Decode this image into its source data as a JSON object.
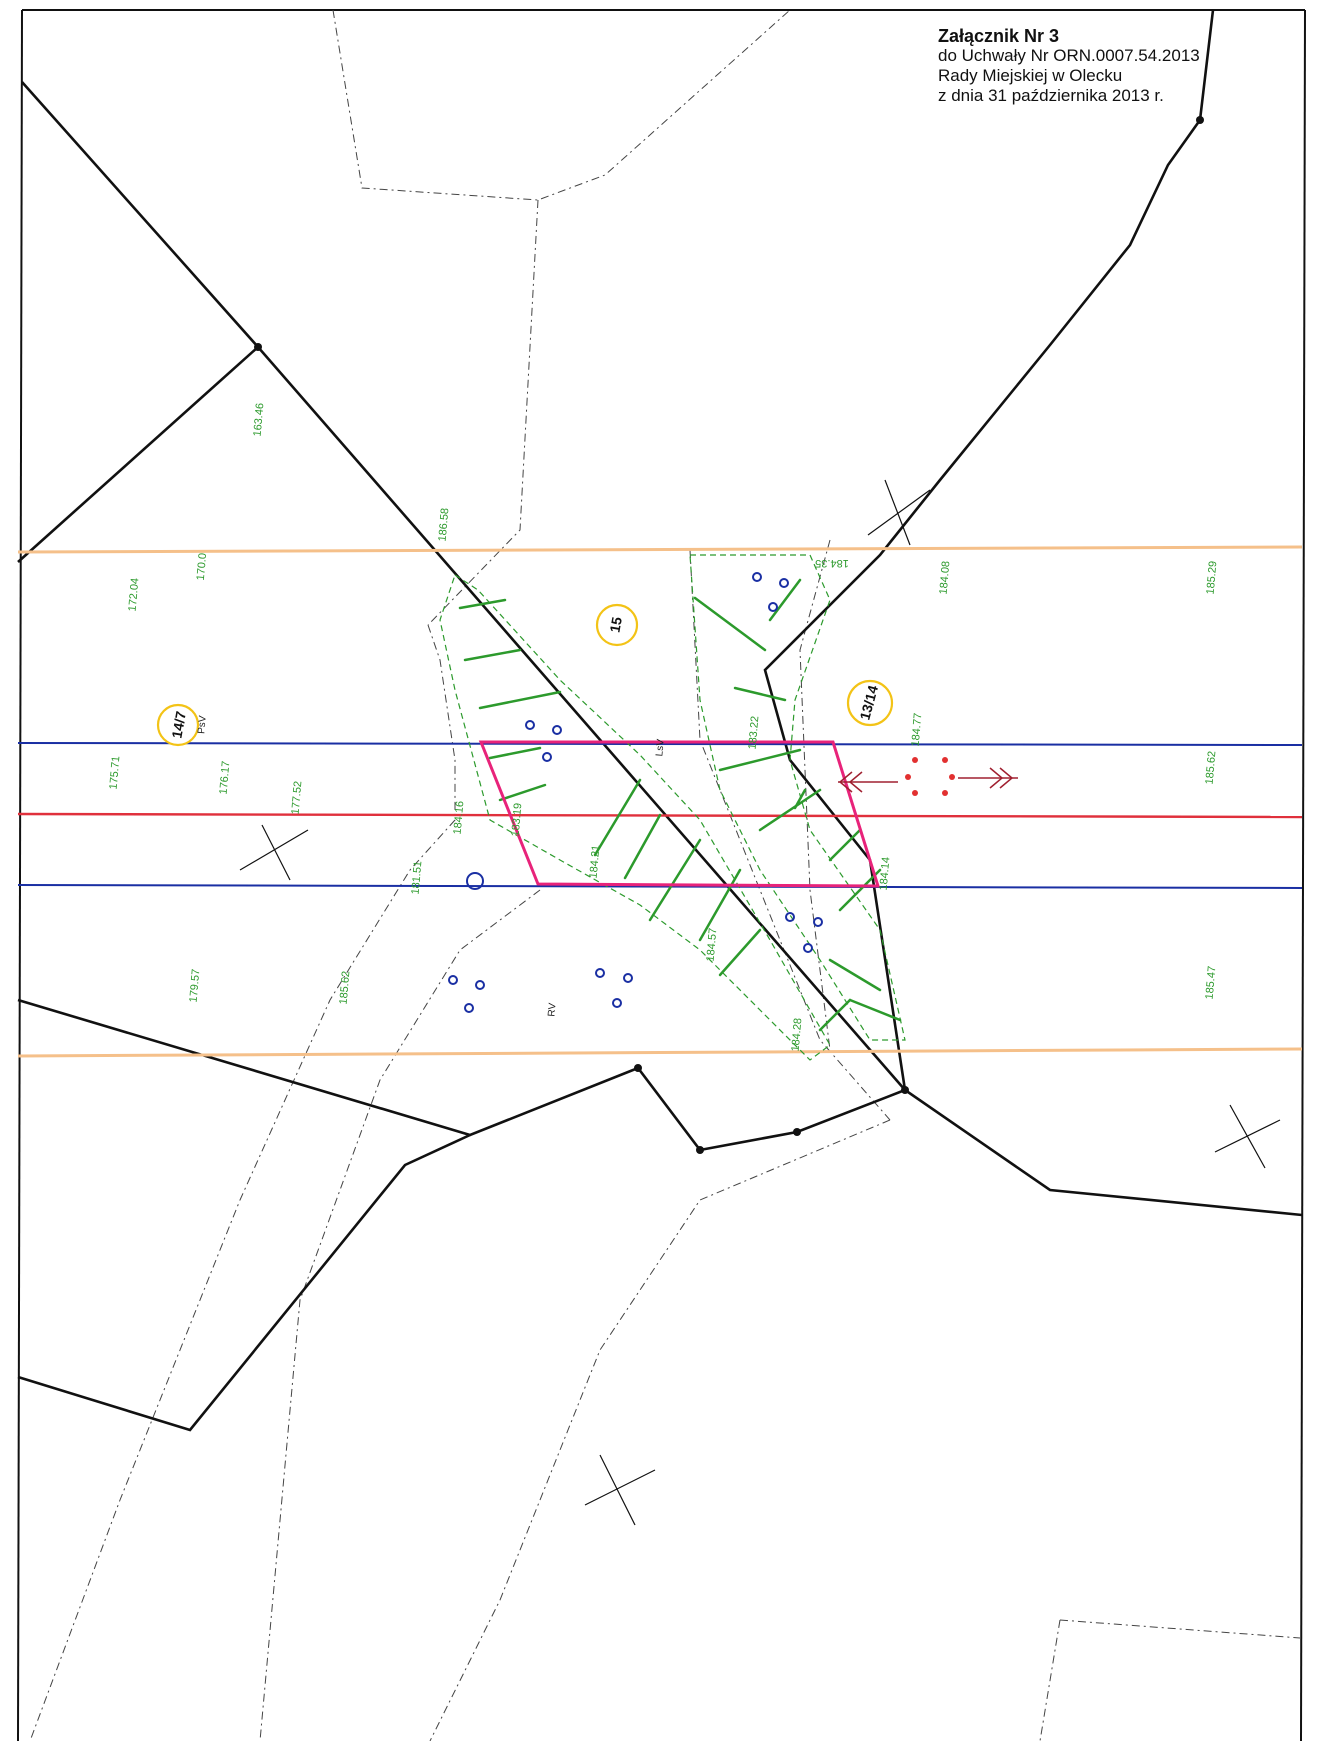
{
  "heading": {
    "line1": "Załącznik Nr 3",
    "line2": "do Uchwały Nr ORN.0007.54.2013",
    "line3": "Rady Miejskiej w Olecku",
    "line4": "z dnia 31 października 2013 r."
  },
  "parcels": {
    "p1": "14/7",
    "p2": "15",
    "p3": "13/14"
  },
  "land_use": {
    "ps": "PsV",
    "ls": "LsV",
    "r": "RV"
  },
  "elevations": {
    "e01": "163.46",
    "e02": "170.0",
    "e03": "172.04",
    "e04": "175.71",
    "e05": "176.17",
    "e06": "177.52",
    "e07": "179.57",
    "e08": "185.62",
    "e09": "181.51",
    "e10": "184.16",
    "e11": "183.19",
    "e12": "184.21",
    "e13": "184.57",
    "e14": "184.28",
    "e15": "184.14",
    "e16": "183.22",
    "e17": "184.77",
    "e18": "184.08",
    "e19": "185.29",
    "e20": "185.62",
    "e21": "185.47",
    "e22": "186.58",
    "e23": "184.35"
  },
  "colors": {
    "boundary": "#111111",
    "contour": "#2c9a2c",
    "blue_line": "#1a2fa3",
    "red_line": "#e0303c",
    "orange_line": "#f5c08a",
    "magenta": "#e8237a",
    "parcel_circle": "#f3c316",
    "well": "#1a2fa3",
    "arrow": "#a02030",
    "red_dot": "#e23030"
  }
}
